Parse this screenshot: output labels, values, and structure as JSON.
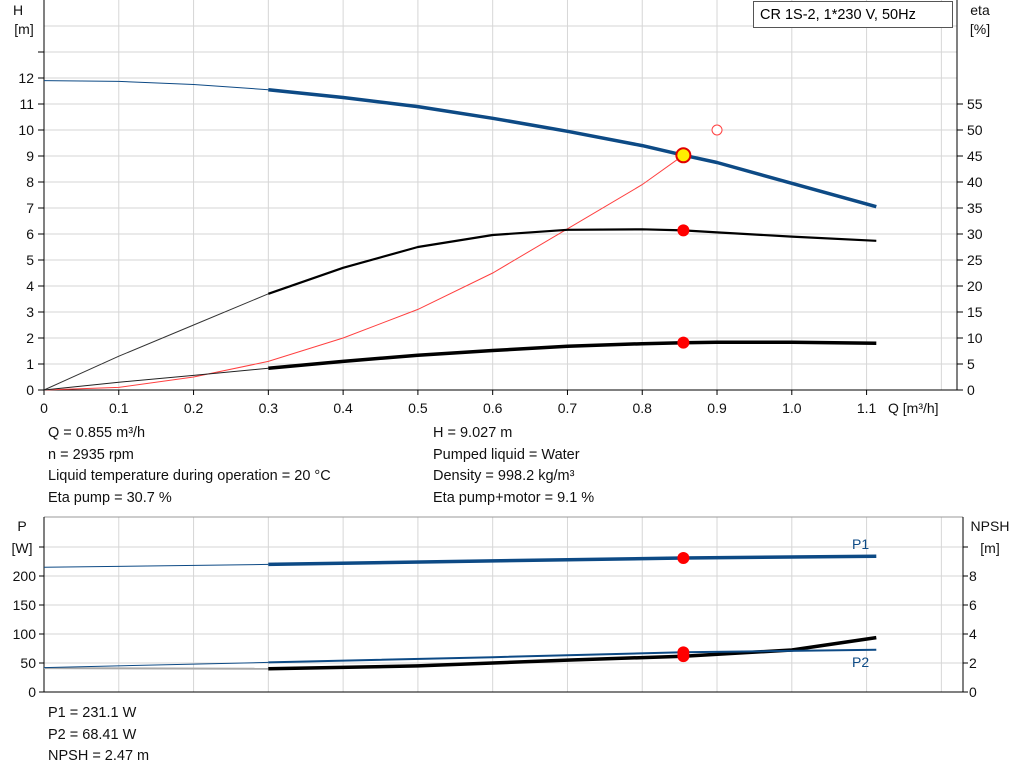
{
  "title": "CR 1S-2, 1*230 V, 50Hz",
  "info_top_left": [
    "Q = 0.855 m³/h",
    "n = 2935 rpm",
    "Liquid temperature during operation = 20 °C",
    "Eta pump = 30.7 %"
  ],
  "info_top_right": [
    "H = 9.027 m",
    "Pumped liquid = Water",
    "Density = 998.2 kg/m³",
    "Eta pump+motor = 9.1 %"
  ],
  "info_bottom": [
    "P1 = 231.1 W",
    "P2 = 68.41 W",
    "NPSH = 2.47 m"
  ],
  "colors": {
    "head": "#0d4a85",
    "eta": "#000000",
    "system": "#ff4040",
    "marker": "#ff0000",
    "duty": "#ffee00",
    "grid": "#d6d6d6"
  },
  "chart_data": [
    {
      "type": "line",
      "xlabel": "Q [m³/h]",
      "ylabel": "H\n[m]",
      "y2label": "eta\n[%]",
      "xlim": [
        0,
        1.2
      ],
      "ylim": [
        0,
        14
      ],
      "y2lim": [
        0,
        70
      ],
      "xticks": [
        "0",
        "0.1",
        "0.2",
        "0.3",
        "0.4",
        "0.5",
        "0.6",
        "0.7",
        "0.8",
        "0.9",
        "1.0",
        "1.1"
      ],
      "yticks": [
        "0",
        "1",
        "2",
        "3",
        "4",
        "5",
        "6",
        "7",
        "8",
        "9",
        "10",
        "11",
        "12"
      ],
      "y2ticks": [
        "0",
        "5",
        "10",
        "15",
        "20",
        "25",
        "30",
        "35",
        "40",
        "45",
        "50",
        "55"
      ],
      "grid": true,
      "series": [
        {
          "id": "H",
          "axis": "left",
          "color": "#0d4a85",
          "x": [
            0,
            0.1,
            0.2,
            0.3,
            0.4,
            0.5,
            0.6,
            0.7,
            0.8,
            0.855,
            0.9,
            1.0,
            1.113
          ],
          "y": [
            11.9,
            11.87,
            11.75,
            11.55,
            11.25,
            10.9,
            10.45,
            9.95,
            9.4,
            9.03,
            8.75,
            7.95,
            7.05
          ]
        },
        {
          "id": "eta-pump",
          "axis": "right",
          "color": "#000000",
          "x": [
            0,
            0.1,
            0.2,
            0.3,
            0.4,
            0.5,
            0.6,
            0.7,
            0.8,
            0.855,
            0.9,
            1.0,
            1.113
          ],
          "y": [
            0,
            6.5,
            12.5,
            18.5,
            23.5,
            27.5,
            29.8,
            30.8,
            30.9,
            30.7,
            30.3,
            29.5,
            28.7
          ]
        },
        {
          "id": "eta-pump-motor",
          "axis": "right",
          "color": "#000000",
          "x": [
            0,
            0.1,
            0.2,
            0.3,
            0.4,
            0.5,
            0.6,
            0.7,
            0.8,
            0.855,
            0.9,
            1.0,
            1.113
          ],
          "y": [
            0,
            1.5,
            2.8,
            4.2,
            5.5,
            6.7,
            7.6,
            8.4,
            8.9,
            9.1,
            9.2,
            9.2,
            9.0
          ]
        },
        {
          "id": "system",
          "axis": "left",
          "color": "#ff4040",
          "x": [
            0,
            0.1,
            0.2,
            0.3,
            0.4,
            0.5,
            0.6,
            0.7,
            0.8,
            0.855
          ],
          "y": [
            0,
            0.1,
            0.5,
            1.1,
            2.0,
            3.1,
            4.5,
            6.2,
            7.9,
            9.03
          ]
        }
      ],
      "duty_point": {
        "x": 0.855,
        "H": 9.027,
        "eta_pump": 30.7,
        "eta_pump_motor": 9.1
      },
      "requested_point": {
        "x": 0.9,
        "H": 10
      }
    },
    {
      "type": "line",
      "ylabel": "P\n[W]",
      "y2label": "NPSH\n[m]",
      "xlim": [
        0,
        1.2
      ],
      "ylim": [
        0,
        300
      ],
      "y2lim": [
        0,
        12
      ],
      "yticks": [
        "0",
        "50",
        "100",
        "150",
        "200"
      ],
      "y2ticks": [
        "0",
        "2",
        "4",
        "6",
        "8"
      ],
      "grid": true,
      "series": [
        {
          "id": "P1",
          "name": "P1",
          "axis": "left",
          "color": "#0d4a85",
          "x": [
            0,
            0.3,
            0.6,
            0.855,
            1.113
          ],
          "y": [
            215,
            220,
            226,
            231.1,
            234
          ]
        },
        {
          "id": "P2",
          "name": "P2",
          "axis": "left",
          "color": "#0d4a85",
          "x": [
            0,
            0.3,
            0.6,
            0.855,
            1.113
          ],
          "y": [
            42,
            51,
            60,
            68.41,
            73
          ]
        },
        {
          "id": "NPSH",
          "axis": "right",
          "color": "#000000",
          "x": [
            0,
            0.3,
            0.5,
            0.7,
            0.855,
            1.0,
            1.113
          ],
          "y": [
            1.65,
            1.6,
            1.8,
            2.2,
            2.47,
            2.9,
            3.75
          ]
        }
      ]
    }
  ]
}
